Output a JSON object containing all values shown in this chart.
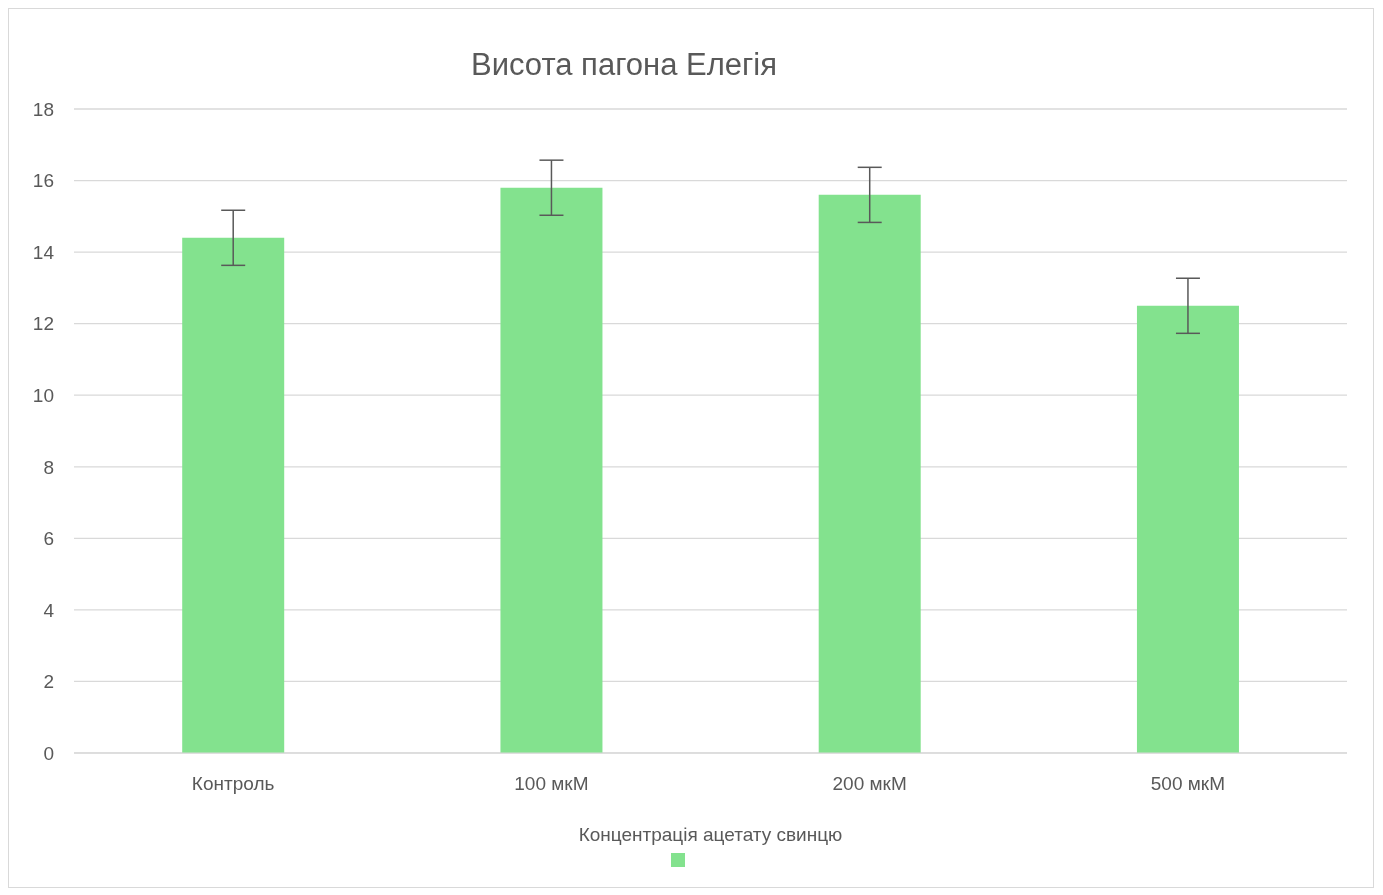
{
  "chart_data": {
    "type": "bar",
    "title": "Висота пагона Елегія",
    "xlabel": "Концентрація ацетату свинцю",
    "categories": [
      "Контроль",
      "100 мкМ",
      "200 мкМ",
      "500 мкМ"
    ],
    "series": [
      {
        "color": "#83e28e",
        "values": [
          14.4,
          15.8,
          15.6,
          12.5
        ],
        "errors": [
          0.77,
          0.77,
          0.77,
          0.77
        ]
      }
    ],
    "ylim": [
      0,
      18
    ],
    "yticks": [
      0,
      2,
      4,
      6,
      8,
      10,
      12,
      14,
      16,
      18
    ],
    "grid": "y"
  }
}
